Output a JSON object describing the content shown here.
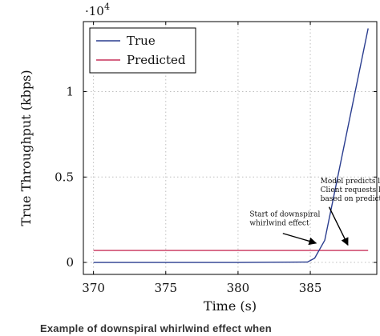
{
  "chart_data": {
    "type": "line",
    "xlabel": "Time (s)",
    "ylabel": "True Throughput (kbps)",
    "multiplier_label": "·10",
    "multiplier_exp": "4",
    "xlim": [
      369.3,
      389.6
    ],
    "ylim": [
      -700,
      14100
    ],
    "x_ticks": [
      370,
      375,
      380,
      385
    ],
    "x_tick_labels": [
      "370",
      "375",
      "380",
      "385"
    ],
    "y_ticks": [
      0,
      5000,
      10000
    ],
    "y_tick_labels": [
      "0",
      "0.5",
      "1"
    ],
    "grid": true,
    "legend_position": "top-left",
    "series": [
      {
        "name": "True",
        "color": "#2a3d8f",
        "x": [
          370,
          380,
          384.8,
          385.3,
          386,
          389
        ],
        "y": [
          0,
          0,
          20,
          250,
          1300,
          13700
        ]
      },
      {
        "name": "Predicted",
        "color": "#c8325b",
        "x": [
          370,
          389
        ],
        "y": [
          700,
          700
        ]
      }
    ],
    "annotations": [
      {
        "lines": [
          "Model predicts low value",
          "Client requests lower value",
          "based on prediction"
        ],
        "text_x": 385.7,
        "text_y": 4650,
        "arrow_from": [
          386.3,
          3250
        ],
        "arrow_to": [
          387.6,
          1020
        ]
      },
      {
        "lines": [
          "Start of downspiral",
          "whirlwind effect"
        ],
        "text_x": 380.8,
        "text_y": 2700,
        "arrow_from": [
          383.1,
          1700
        ],
        "arrow_to": [
          385.4,
          1130
        ]
      }
    ]
  },
  "caption": "Example of downspiral whirlwind effect when"
}
